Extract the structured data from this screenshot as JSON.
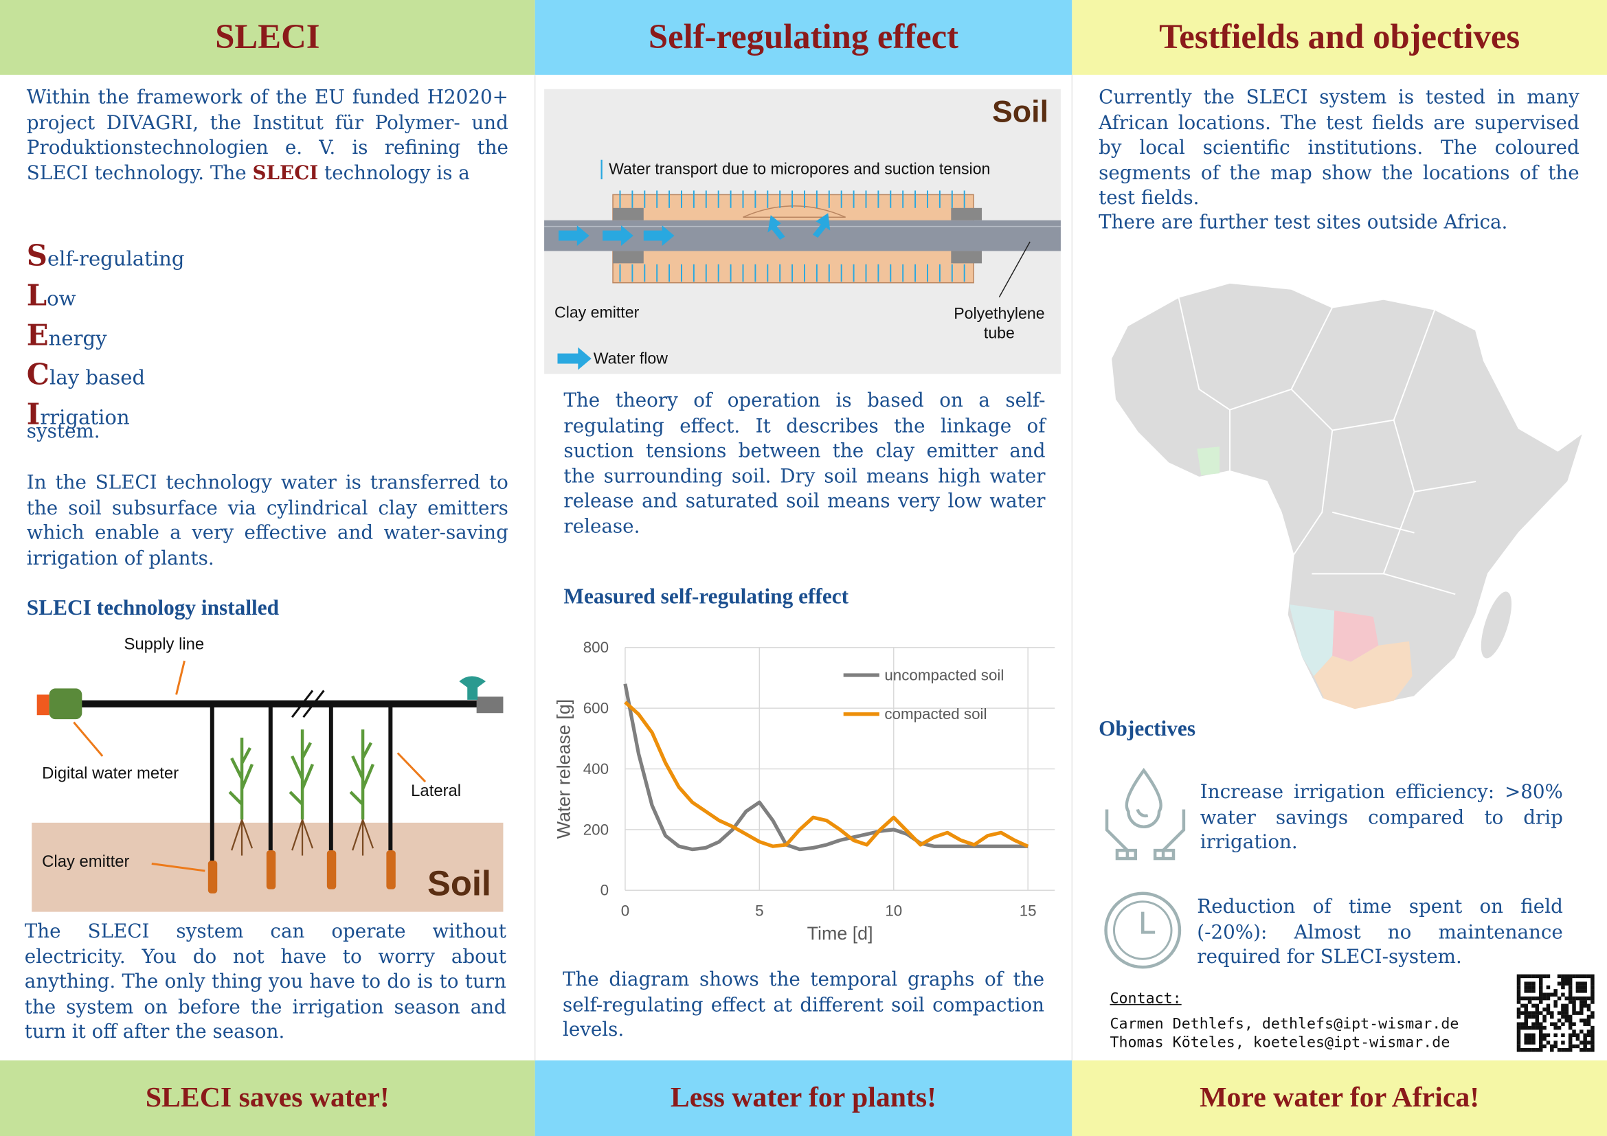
{
  "left": {
    "title": "SLECI",
    "intro": [
      "Within the framework of the EU funded H2020+ project DIVAGRI, the Institut für Polymer- und Produktionstechnologien e. V. is refining the SLECI technology. The ",
      "SLECI",
      " technology is a"
    ],
    "acronym": [
      {
        "letter": "S",
        "rest": "elf-regulating"
      },
      {
        "letter": "L",
        "rest": "ow"
      },
      {
        "letter": "E",
        "rest": "nergy"
      },
      {
        "letter": "C",
        "rest": "lay based"
      },
      {
        "letter": "I",
        "rest": "rrigation"
      }
    ],
    "acronym_end": "system.",
    "paragraph": "In the SLECI technology water is transferred to the soil subsurface via cylindrical clay emitters which enable a very effective and water-saving irrigation of plants.",
    "subtitle": "SLECI technology installed",
    "figure": {
      "supply": "Supply line",
      "meter": "Digital water meter",
      "lateral": "Lateral",
      "emitter": "Clay emitter",
      "soil": "Soil"
    },
    "bottom": "The SLECI system can operate without electricity. You do not have to worry about anything. The only thing you have to do is to turn the system on before the irrigation season and turn it off after the season.",
    "footer": "SLECI saves water!"
  },
  "middle": {
    "title": "Self-regulating effect",
    "figure": {
      "soil": "Soil",
      "transport": "Water transport due to micropores and suction tension",
      "emitter": "Clay emitter",
      "tube": "Polyethylene tube",
      "flow": "Water flow"
    },
    "paragraph": "The theory of operation is based on a self-regulating effect. It describes the linkage of suction tensions between the clay emitter and the surrounding soil. Dry soil means high water release and saturated soil means very low water release.",
    "bottom": "The diagram shows the temporal graphs of the self-regulating effect at different soil compaction levels.",
    "footer": "Less water for plants!"
  },
  "chart_data": {
    "type": "line",
    "title": "Measured self-regulating effect",
    "x_label": "Time [d]",
    "y_label": "Water release [g]",
    "x": [
      0,
      0.5,
      1,
      1.5,
      2,
      2.5,
      3,
      3.5,
      4,
      4.5,
      5,
      5.5,
      6,
      6.5,
      7,
      7.5,
      8,
      8.5,
      9,
      9.5,
      10,
      10.5,
      11,
      11.5,
      12,
      12.5,
      13,
      13.5,
      14,
      14.5,
      15
    ],
    "series": [
      {
        "name": "uncompacted soil",
        "color": "#7f7f7f",
        "values": [
          680,
          450,
          280,
          180,
          145,
          135,
          140,
          160,
          200,
          260,
          290,
          230,
          150,
          135,
          140,
          150,
          165,
          175,
          185,
          195,
          200,
          185,
          155,
          145,
          145,
          145,
          145,
          145,
          145,
          145,
          145
        ]
      },
      {
        "name": "compacted soil",
        "color": "#ed8f0a",
        "values": [
          620,
          580,
          520,
          420,
          340,
          290,
          260,
          230,
          210,
          185,
          160,
          145,
          150,
          200,
          240,
          230,
          200,
          165,
          150,
          200,
          240,
          195,
          150,
          175,
          190,
          165,
          150,
          180,
          190,
          165,
          145
        ]
      }
    ],
    "xlim": [
      0,
      16
    ],
    "xticks": [
      0,
      5,
      10,
      15
    ],
    "ylim": [
      0,
      800
    ],
    "yticks": [
      0,
      200,
      400,
      600,
      800
    ],
    "grid": true,
    "legend": "upper right"
  },
  "right": {
    "title": "Testfields and objectives",
    "paragraph": [
      "Currently the SLECI system is tested in many African locations. The test fields are supervised by local scientific institutions. The coloured segments of the map show the locations of the test fields.",
      "There are further test sites outside Africa."
    ],
    "objectives_title": "Objectives",
    "objectives": [
      "Increase irrigation efficiency: >80% water savings compared to drip irrigation.",
      "Reduction of time spent on field (-20%): Almost no maintenance required for SLECI-system."
    ],
    "contact_title": "Contact:",
    "contacts": [
      "Carmen Dethlefs, dethlefs@ipt-wismar.de",
      "Thomas Köteles, koeteles@ipt-wismar.de"
    ],
    "footer": "More water for Africa!"
  }
}
